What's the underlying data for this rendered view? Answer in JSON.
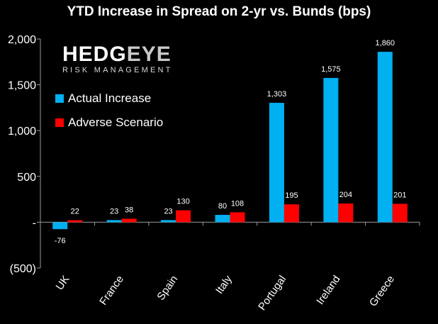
{
  "chart_data": {
    "type": "bar",
    "title": "YTD Increase in Spread on 2-yr vs. Bunds (bps)",
    "categories": [
      "UK",
      "France",
      "Spain",
      "Italy",
      "Portugal",
      "Ireland",
      "Greece"
    ],
    "series": [
      {
        "name": "Actual Increase",
        "color": "#00b0f0",
        "values": [
          -76,
          23,
          23,
          80,
          1303,
          1575,
          1860
        ],
        "labels": [
          "-76",
          "23",
          "23",
          "80",
          "1,303",
          "1,575",
          "1,860"
        ]
      },
      {
        "name": "Adverse Scenario",
        "color": "#ff0000",
        "values": [
          22,
          38,
          130,
          108,
          195,
          204,
          201
        ],
        "labels": [
          "22",
          "38",
          "130",
          "108",
          "195",
          "204",
          "201"
        ]
      }
    ],
    "ylim": [
      -500,
      2000
    ],
    "yticks": [
      -500,
      0,
      500,
      1000,
      1500,
      2000
    ],
    "ytick_labels": [
      "(500)",
      "-",
      "500",
      "1,000",
      "1,500",
      "2,000"
    ],
    "xlabel": "",
    "ylabel": "",
    "legend_position": "top-left"
  },
  "logo": {
    "brand_main": "HEDG",
    "brand_eye": "EYE",
    "subtitle": "RISK MANAGEMENT"
  }
}
